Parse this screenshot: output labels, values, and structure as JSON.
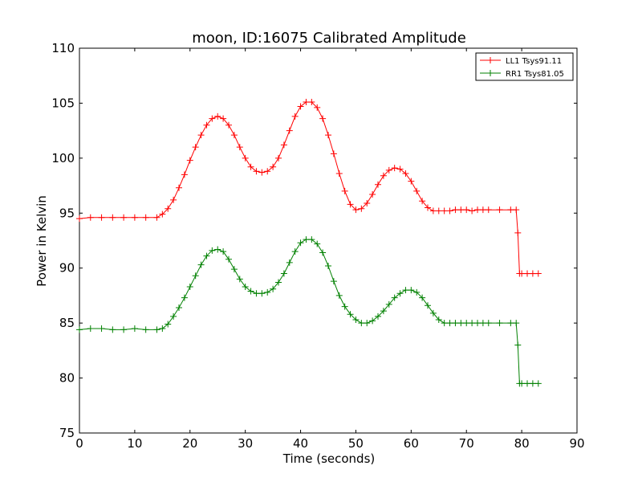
{
  "chart_data": {
    "type": "line",
    "title": "moon, ID:16075 Calibrated Amplitude",
    "xlabel": "Time (seconds)",
    "ylabel": "Power in Kelvin",
    "xlim": [
      0,
      90
    ],
    "ylim": [
      75,
      110
    ],
    "xticks": [
      0,
      10,
      20,
      30,
      40,
      50,
      60,
      70,
      80,
      90
    ],
    "yticks": [
      75,
      80,
      85,
      90,
      95,
      100,
      105,
      110
    ],
    "grid": false,
    "legend_position": "top-right",
    "marker": "plus",
    "series": [
      {
        "name": "LL1 Tsys91.11",
        "color": "#ff0000",
        "x": [
          0,
          2,
          4,
          6,
          8,
          10,
          12,
          14,
          15,
          16,
          17,
          18,
          19,
          20,
          21,
          22,
          23,
          24,
          25,
          26,
          27,
          28,
          29,
          30,
          31,
          32,
          33,
          34,
          35,
          36,
          37,
          38,
          39,
          40,
          41,
          42,
          43,
          44,
          45,
          46,
          47,
          48,
          49,
          50,
          51,
          52,
          53,
          54,
          55,
          56,
          57,
          58,
          59,
          60,
          61,
          62,
          63,
          64,
          65,
          66,
          67,
          68,
          69,
          70,
          71,
          72,
          73,
          74,
          76,
          78,
          79,
          79.3,
          79.6,
          80,
          81,
          82,
          83
        ],
        "y": [
          94.5,
          94.6,
          94.6,
          94.6,
          94.6,
          94.6,
          94.6,
          94.6,
          94.9,
          95.4,
          96.2,
          97.3,
          98.5,
          99.8,
          101.0,
          102.1,
          103.0,
          103.6,
          103.8,
          103.6,
          103.0,
          102.1,
          101.0,
          100.0,
          99.2,
          98.8,
          98.7,
          98.8,
          99.2,
          100.0,
          101.2,
          102.5,
          103.8,
          104.7,
          105.1,
          105.1,
          104.6,
          103.6,
          102.1,
          100.4,
          98.6,
          97.0,
          95.8,
          95.3,
          95.4,
          95.9,
          96.7,
          97.6,
          98.4,
          98.9,
          99.1,
          99.0,
          98.6,
          97.9,
          97.0,
          96.1,
          95.5,
          95.2,
          95.2,
          95.2,
          95.2,
          95.3,
          95.3,
          95.3,
          95.2,
          95.3,
          95.3,
          95.3,
          95.3,
          95.3,
          95.3,
          93.2,
          89.5,
          89.5,
          89.5,
          89.5,
          89.5
        ]
      },
      {
        "name": "RR1 Tsys81.05",
        "color": "#008000",
        "x": [
          0,
          2,
          4,
          6,
          8,
          10,
          12,
          14,
          15,
          16,
          17,
          18,
          19,
          20,
          21,
          22,
          23,
          24,
          25,
          26,
          27,
          28,
          29,
          30,
          31,
          32,
          33,
          34,
          35,
          36,
          37,
          38,
          39,
          40,
          41,
          42,
          43,
          44,
          45,
          46,
          47,
          48,
          49,
          50,
          51,
          52,
          53,
          54,
          55,
          56,
          57,
          58,
          59,
          60,
          61,
          62,
          63,
          64,
          65,
          66,
          67,
          68,
          69,
          70,
          71,
          72,
          73,
          74,
          76,
          78,
          79,
          79.3,
          79.6,
          80,
          81,
          82,
          83
        ],
        "y": [
          84.4,
          84.5,
          84.5,
          84.4,
          84.4,
          84.5,
          84.4,
          84.4,
          84.5,
          84.9,
          85.6,
          86.4,
          87.3,
          88.3,
          89.3,
          90.3,
          91.1,
          91.6,
          91.7,
          91.5,
          90.8,
          89.9,
          89.0,
          88.3,
          87.9,
          87.7,
          87.7,
          87.8,
          88.1,
          88.7,
          89.5,
          90.5,
          91.5,
          92.3,
          92.6,
          92.6,
          92.2,
          91.4,
          90.2,
          88.8,
          87.5,
          86.5,
          85.8,
          85.3,
          85.0,
          85.0,
          85.2,
          85.6,
          86.1,
          86.7,
          87.3,
          87.7,
          88.0,
          88.0,
          87.8,
          87.3,
          86.6,
          85.9,
          85.3,
          85.0,
          85.0,
          85.0,
          85.0,
          85.0,
          85.0,
          85.0,
          85.0,
          85.0,
          85.0,
          85.0,
          85.0,
          83.0,
          79.5,
          79.5,
          79.5,
          79.5,
          79.5
        ]
      }
    ]
  }
}
